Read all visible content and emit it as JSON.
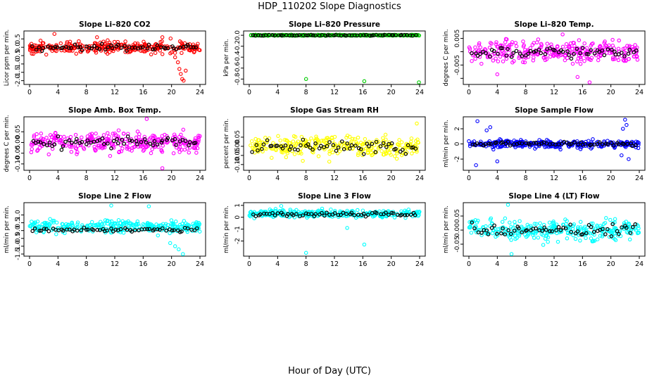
{
  "figure": {
    "title": "HDP_110202  Slope Diagnostics",
    "xlabel": "Hour of Day (UTC)"
  },
  "chart_data": [
    {
      "type": "scatter",
      "title": "Slope Li–820 CO2",
      "ylabel": "Licor ppm per min.",
      "color": "#ff0000",
      "xlim": [
        0,
        24
      ],
      "xticks": [
        0,
        4,
        8,
        12,
        16,
        20,
        24
      ],
      "ylim": [
        -2.1,
        0.85
      ],
      "yticks": [
        -2.0,
        -1.5,
        -1.0,
        -0.5,
        0.0,
        0.5
      ],
      "yticklabels": [
        "-2.0",
        "-1.5",
        "-1.0",
        "-0.5",
        "0.0",
        "0.5"
      ],
      "base_mean": 0.0,
      "base_spread": 0.35,
      "black_mean": 0.0,
      "black_spread": 0.18,
      "features": [
        {
          "hour": 20.0,
          "value": -0.3
        },
        {
          "hour": 20.5,
          "value": -0.6
        },
        {
          "hour": 20.9,
          "value": -0.9
        },
        {
          "hour": 21.1,
          "value": -1.3
        },
        {
          "hour": 21.3,
          "value": -1.6
        },
        {
          "hour": 21.5,
          "value": -1.9
        },
        {
          "hour": 21.7,
          "value": -2.0
        },
        {
          "hour": 22.0,
          "value": -1.4
        },
        {
          "hour": 3.5,
          "value": 0.8
        },
        {
          "hour": 9.5,
          "value": 0.6
        },
        {
          "hour": 18.7,
          "value": 0.6
        }
      ]
    },
    {
      "type": "scatter",
      "title": "Slope Li–820 Pressure",
      "ylabel": "kPa per min.",
      "color": "#00cc00",
      "xlim": [
        0,
        24
      ],
      "xticks": [
        0,
        4,
        8,
        12,
        16,
        20,
        24
      ],
      "ylim": [
        -0.86,
        0.04
      ],
      "yticks": [
        0.0,
        -0.2,
        -0.4,
        -0.6,
        -0.8
      ],
      "yticklabels": [
        "0.0",
        "-0.2",
        "-0.4",
        "-0.6",
        "-0.8"
      ],
      "base_mean": 0.0,
      "base_spread": 0.01,
      "black_mean": 0.0,
      "black_spread": 0.008,
      "features": [
        {
          "hour": 8.0,
          "value": -0.8
        },
        {
          "hour": 16.2,
          "value": -0.84
        },
        {
          "hour": 23.9,
          "value": -0.86
        }
      ]
    },
    {
      "type": "scatter",
      "title": "Slope Li–820 Temp.",
      "ylabel": "degrees C per min.",
      "color": "#ff00ff",
      "xlim": [
        0,
        24
      ],
      "xticks": [
        0,
        4,
        8,
        12,
        16,
        20,
        24
      ],
      "ylim": [
        -0.0115,
        0.007
      ],
      "yticks": [
        0.005,
        0.0,
        -0.005,
        -0.01
      ],
      "yticklabels": [
        "0.005",
        "",
        "-0.005",
        ""
      ],
      "base_mean": 0.0,
      "base_spread": 0.004,
      "black_mean": 0.0,
      "black_spread": 0.002,
      "features": [
        {
          "hour": 4.0,
          "value": -0.0085
        },
        {
          "hour": 13.2,
          "value": 0.0065
        },
        {
          "hour": 15.3,
          "value": -0.0095
        },
        {
          "hour": 17.0,
          "value": -0.0115
        }
      ]
    },
    {
      "type": "scatter",
      "title": "Slope Amb. Box Temp.",
      "ylabel": "degrees C per min.",
      "color": "#ff00ff",
      "xlim": [
        0,
        24
      ],
      "xticks": [
        0,
        4,
        8,
        12,
        16,
        20,
        24
      ],
      "ylim": [
        -0.12,
        0.11
      ],
      "yticks": [
        0.05,
        0.0,
        -0.05,
        -0.1
      ],
      "yticklabels": [
        "0.05",
        "0.00",
        "-0.05",
        "-0.10"
      ],
      "base_mean": 0.0,
      "base_spread": 0.045,
      "black_mean": 0.0,
      "black_spread": 0.025,
      "features": [
        {
          "hour": 16.5,
          "value": 0.11
        },
        {
          "hour": 18.7,
          "value": -0.12
        }
      ]
    },
    {
      "type": "scatter",
      "title": "Slope Gas Stream RH",
      "ylabel": "percent per min.",
      "color": "#ffff00",
      "xlim": [
        0,
        24
      ],
      "xticks": [
        0,
        4,
        8,
        12,
        16,
        20,
        24
      ],
      "ylim": [
        -0.12,
        0.15
      ],
      "yticks": [
        0.05,
        0.0,
        -0.05,
        -0.1
      ],
      "yticklabels": [
        "0.05",
        "0.00",
        "-0.05",
        "-0.10"
      ],
      "base_mean": 0.0,
      "base_spread": 0.055,
      "black_mean": 0.0,
      "black_spread": 0.035,
      "features": [
        {
          "hour": 23.6,
          "value": 0.125
        }
      ]
    },
    {
      "type": "scatter",
      "title": "Slope Sample Flow",
      "ylabel": "ml/min per min.",
      "color": "#0000ff",
      "xlim": [
        0,
        24
      ],
      "xticks": [
        0,
        4,
        8,
        12,
        16,
        20,
        24
      ],
      "ylim": [
        -3.2,
        3.3
      ],
      "yticks": [
        2,
        0,
        -2
      ],
      "yticklabels": [
        "2",
        "0",
        "-2"
      ],
      "base_mean": 0.0,
      "base_spread": 0.5,
      "black_mean": 0.0,
      "black_spread": 0.25,
      "features": [
        {
          "hour": 1.0,
          "value": -2.8
        },
        {
          "hour": 1.2,
          "value": 3.0
        },
        {
          "hour": 2.5,
          "value": 1.8
        },
        {
          "hour": 3.0,
          "value": 2.2
        },
        {
          "hour": 4.0,
          "value": -2.3
        },
        {
          "hour": 22.0,
          "value": 3.2
        },
        {
          "hour": 22.2,
          "value": 2.5
        },
        {
          "hour": 21.7,
          "value": 2.0
        },
        {
          "hour": 22.5,
          "value": -2.0
        },
        {
          "hour": 21.5,
          "value": -1.5
        }
      ]
    },
    {
      "type": "scatter",
      "title": "Slope Line 2 Flow",
      "ylabel": "ml/min per min.",
      "color": "#00ffff",
      "xlim": [
        0,
        24
      ],
      "xticks": [
        0,
        4,
        8,
        12,
        16,
        20,
        24
      ],
      "ylim": [
        -1.5,
        1.65
      ],
      "yticks": [
        1.0,
        0.5,
        0.0,
        -0.5,
        -1.0,
        -1.5
      ],
      "yticklabels": [
        "1.0",
        "0.5",
        "0.0",
        "-0.5",
        "-1.0",
        "-1.5"
      ],
      "base_mean": 0.25,
      "base_spread": 0.4,
      "black_mean": 0.05,
      "black_spread": 0.12,
      "features": [
        {
          "hour": 11.5,
          "value": 1.6
        },
        {
          "hour": 16.8,
          "value": 1.55
        },
        {
          "hour": 19.8,
          "value": -0.8
        },
        {
          "hour": 20.5,
          "value": -1.0
        },
        {
          "hour": 21.0,
          "value": -1.2
        },
        {
          "hour": 21.6,
          "value": -1.5
        }
      ]
    },
    {
      "type": "scatter",
      "title": "Slope Line 3 Flow",
      "ylabel": "ml/min per min.",
      "color": "#00ffff",
      "xlim": [
        0,
        24
      ],
      "xticks": [
        0,
        4,
        8,
        12,
        16,
        20,
        24
      ],
      "ylim": [
        -3.1,
        1.05
      ],
      "yticks": [
        1,
        0,
        -1,
        -2
      ],
      "yticklabels": [
        "1",
        "0",
        "-1",
        "-2"
      ],
      "base_mean": 0.3,
      "base_spread": 0.3,
      "black_mean": 0.25,
      "black_spread": 0.2,
      "features": [
        {
          "hour": 4.5,
          "value": 0.95
        },
        {
          "hour": 8.0,
          "value": -3.0
        },
        {
          "hour": 16.2,
          "value": -2.3
        },
        {
          "hour": 13.8,
          "value": -0.9
        }
      ]
    },
    {
      "type": "scatter",
      "title": "Slope Line 4 (LT) Flow",
      "ylabel": "ml/min per min.",
      "color": "#00ffff",
      "xlim": [
        0,
        24
      ],
      "xticks": [
        0,
        4,
        8,
        12,
        16,
        20,
        24
      ],
      "ylim": [
        -0.085,
        0.09
      ],
      "yticks": [
        0.05,
        0.0,
        -0.05
      ],
      "yticklabels": [
        "0.05",
        "0.00",
        "-0.05"
      ],
      "base_mean": 0.0,
      "base_spread": 0.035,
      "black_mean": 0.0,
      "black_spread": 0.02,
      "features": [
        {
          "hour": 5.5,
          "value": 0.09
        },
        {
          "hour": 6.0,
          "value": -0.085
        }
      ]
    }
  ]
}
